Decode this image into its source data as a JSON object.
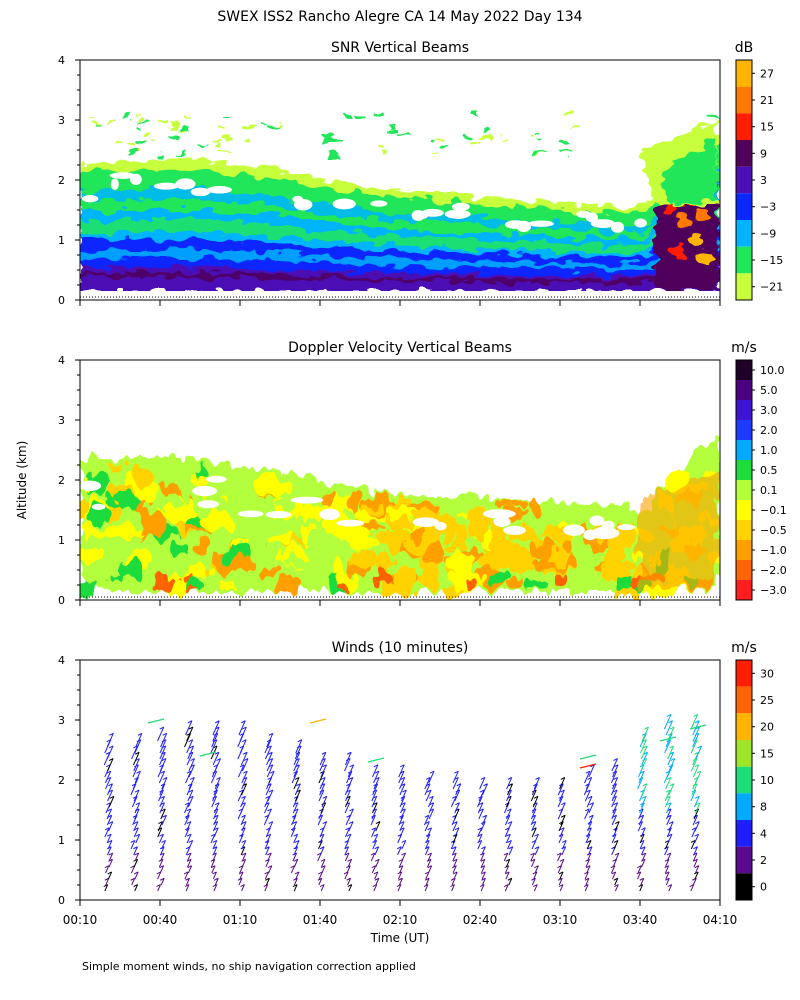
{
  "title": "SWEX ISS2 Rancho Alegre CA  14 May 2022 Day 134",
  "y_axis_label": "Altitude (km)",
  "x_axis_label": "Time (UT)",
  "footnote": "Simple moment winds, no ship navigation correction applied",
  "time_ticks": [
    "00:10",
    "00:40",
    "01:10",
    "01:40",
    "02:10",
    "02:40",
    "03:10",
    "03:40",
    "04:10"
  ],
  "chart_data": [
    {
      "type": "heatmap",
      "title": "SNR Vertical Beams",
      "ylabel": "Altitude (km)",
      "xlabel": "Time (UT)",
      "xlim": [
        "00:10",
        "04:10"
      ],
      "ylim": [
        0,
        4
      ],
      "yticks": [
        0,
        1,
        2,
        3,
        4
      ],
      "colorbar": {
        "unit": "dB",
        "labels": [
          "27",
          "21",
          "15",
          "9",
          "3",
          "−3",
          "−9",
          "−15",
          "−21"
        ],
        "colors": [
          "#ffb400",
          "#ff7800",
          "#ff1e00",
          "#50005a",
          "#4b0fb4",
          "#0a28ff",
          "#00b4ff",
          "#21e65a",
          "#c8ff3c"
        ]
      },
      "top_altitude_km": [
        2.3,
        2.3,
        2.35,
        2.35,
        2.25,
        2.2,
        2.05,
        1.95,
        1.85,
        1.8,
        1.75,
        1.7,
        1.65,
        1.6,
        1.55,
        1.55,
        2.4,
        2.8
      ]
    },
    {
      "type": "heatmap",
      "title": "Doppler Velocity Vertical Beams",
      "ylabel": "Altitude (km)",
      "xlabel": "Time (UT)",
      "xlim": [
        "00:10",
        "04:10"
      ],
      "ylim": [
        0,
        4
      ],
      "yticks": [
        0,
        1,
        2,
        3,
        4
      ],
      "colorbar": {
        "unit": "m/s",
        "labels": [
          "10.0",
          "5.0",
          "3.0",
          "2.0",
          "1.0",
          "0.5",
          "0.1",
          "−0.1",
          "−0.5",
          "−1.0",
          "−2.0",
          "−3.0"
        ],
        "colors": [
          "#1e0028",
          "#4b0082",
          "#3c14d2",
          "#1e3cff",
          "#00aaff",
          "#1edc3c",
          "#b4ff3c",
          "#ffff00",
          "#ffd200",
          "#ffa000",
          "#ff6400",
          "#ff1e1e"
        ]
      },
      "top_altitude_km": [
        2.35,
        2.35,
        2.4,
        2.35,
        2.25,
        2.2,
        2.05,
        1.9,
        1.8,
        1.75,
        1.7,
        1.7,
        1.65,
        1.6,
        1.55,
        1.55,
        2.2,
        2.75
      ]
    },
    {
      "type": "scatter",
      "title": "Winds (10 minutes)",
      "ylabel": "Altitude (km)",
      "xlabel": "Time (UT)",
      "xlim": [
        "00:10",
        "04:10"
      ],
      "ylim": [
        0,
        4
      ],
      "yticks": [
        0,
        1,
        2,
        3,
        4
      ],
      "colorbar": {
        "unit": "m/s",
        "labels": [
          "30",
          "25",
          "20",
          "15",
          "10",
          "8",
          "4",
          "2",
          "0"
        ],
        "colors": [
          "#ff1e00",
          "#ff6400",
          "#ffb400",
          "#a0e628",
          "#1edc78",
          "#00aaff",
          "#1e1eff",
          "#5a0a8c",
          "#000000"
        ]
      },
      "profile_times": [
        "00:20",
        "00:30",
        "00:40",
        "00:50",
        "01:00",
        "01:10",
        "01:20",
        "01:30",
        "01:40",
        "01:50",
        "02:00",
        "02:10",
        "02:20",
        "02:30",
        "02:40",
        "02:50",
        "03:00",
        "03:10",
        "03:20",
        "03:30",
        "03:40",
        "03:50",
        "04:00"
      ],
      "profile_top_km": [
        2.6,
        2.6,
        2.7,
        2.8,
        2.8,
        2.8,
        2.6,
        2.5,
        2.3,
        2.3,
        2.1,
        2.1,
        2.0,
        2.0,
        1.95,
        1.95,
        1.9,
        1.9,
        2.1,
        2.2,
        2.7,
        2.9,
        2.9
      ]
    }
  ]
}
